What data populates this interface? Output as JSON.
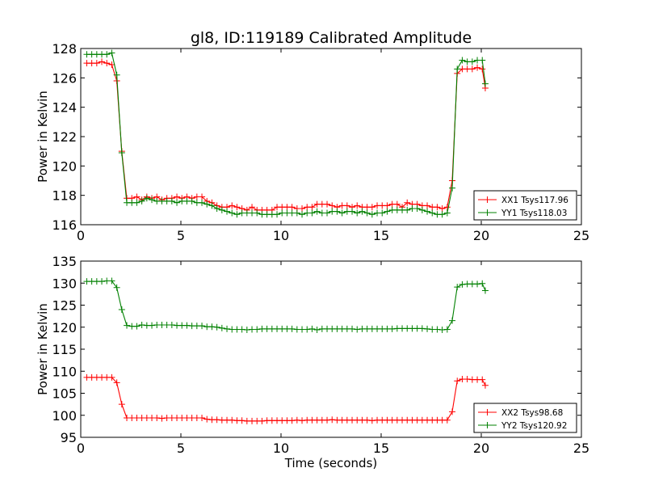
{
  "figure": {
    "title": "gl8, ID:119189 Calibrated Amplitude",
    "xlabel": "Time (seconds)"
  },
  "colors": {
    "xx": "#ff0000",
    "yy": "#008000"
  },
  "chart_data": [
    {
      "type": "line",
      "title": "gl8, ID:119189 Calibrated Amplitude",
      "xlabel": "",
      "ylabel": "Power in Kelvin",
      "xlim": [
        0,
        25
      ],
      "ylim": [
        116,
        128
      ],
      "xticks": [
        "0",
        "5",
        "10",
        "15",
        "20",
        "25"
      ],
      "yticks": [
        "116",
        "118",
        "120",
        "122",
        "124",
        "126",
        "128"
      ],
      "grid": false,
      "legend_position": "lower-right",
      "x": [
        0.3,
        0.55,
        0.8,
        1.05,
        1.3,
        1.55,
        1.8,
        2.05,
        2.3,
        2.55,
        2.8,
        3.05,
        3.3,
        3.55,
        3.8,
        4.05,
        4.3,
        4.55,
        4.8,
        5.05,
        5.3,
        5.55,
        5.8,
        6.05,
        6.3,
        6.55,
        6.8,
        7.05,
        7.3,
        7.55,
        7.8,
        8.05,
        8.3,
        8.55,
        8.8,
        9.05,
        9.3,
        9.55,
        9.8,
        10.05,
        10.3,
        10.55,
        10.8,
        11.05,
        11.3,
        11.55,
        11.8,
        12.05,
        12.3,
        12.55,
        12.8,
        13.05,
        13.3,
        13.55,
        13.8,
        14.05,
        14.3,
        14.55,
        14.8,
        15.05,
        15.3,
        15.55,
        15.8,
        16.05,
        16.3,
        16.55,
        16.8,
        17.05,
        17.3,
        17.55,
        17.8,
        18.05,
        18.3,
        18.55,
        18.8,
        19.05,
        19.3,
        19.55,
        19.8,
        20.05,
        20.2
      ],
      "series": [
        {
          "name": "XX1 Tsys117.96",
          "color": "#ff0000",
          "values": [
            127.0,
            127.0,
            127.0,
            127.1,
            127.0,
            126.9,
            125.8,
            121.0,
            117.8,
            117.8,
            117.9,
            117.7,
            117.9,
            117.8,
            117.9,
            117.7,
            117.8,
            117.8,
            117.9,
            117.8,
            117.9,
            117.8,
            117.9,
            117.9,
            117.6,
            117.5,
            117.3,
            117.2,
            117.2,
            117.3,
            117.2,
            117.1,
            117.0,
            117.2,
            117.0,
            117.0,
            117.0,
            117.0,
            117.2,
            117.2,
            117.2,
            117.2,
            117.1,
            117.1,
            117.2,
            117.2,
            117.4,
            117.4,
            117.4,
            117.3,
            117.2,
            117.3,
            117.3,
            117.2,
            117.3,
            117.2,
            117.2,
            117.2,
            117.3,
            117.3,
            117.3,
            117.4,
            117.4,
            117.2,
            117.5,
            117.4,
            117.4,
            117.3,
            117.3,
            117.2,
            117.2,
            117.1,
            117.2,
            119.0,
            126.3,
            126.6,
            126.6,
            126.6,
            126.7,
            126.6,
            125.3
          ]
        },
        {
          "name": "YY1 Tsys118.03",
          "color": "#008000",
          "values": [
            127.6,
            127.6,
            127.6,
            127.6,
            127.6,
            127.7,
            126.2,
            120.9,
            117.5,
            117.5,
            117.5,
            117.6,
            117.8,
            117.7,
            117.6,
            117.6,
            117.6,
            117.6,
            117.5,
            117.6,
            117.6,
            117.6,
            117.5,
            117.5,
            117.4,
            117.3,
            117.1,
            117.0,
            116.9,
            116.8,
            116.7,
            116.8,
            116.8,
            116.8,
            116.8,
            116.7,
            116.7,
            116.7,
            116.7,
            116.8,
            116.8,
            116.8,
            116.8,
            116.7,
            116.8,
            116.8,
            116.9,
            116.8,
            116.8,
            116.9,
            116.9,
            116.8,
            116.9,
            116.9,
            116.8,
            116.9,
            116.8,
            116.7,
            116.8,
            116.8,
            116.9,
            117.0,
            117.0,
            117.0,
            117.0,
            117.1,
            117.1,
            117.0,
            116.9,
            116.8,
            116.7,
            116.7,
            116.8,
            118.5,
            126.6,
            127.2,
            127.1,
            127.1,
            127.2,
            127.2,
            125.6
          ]
        }
      ]
    },
    {
      "type": "line",
      "title": "",
      "xlabel": "Time (seconds)",
      "ylabel": "Power in Kelvin",
      "xlim": [
        0,
        25
      ],
      "ylim": [
        95,
        135
      ],
      "xticks": [
        "0",
        "5",
        "10",
        "15",
        "20",
        "25"
      ],
      "yticks": [
        "95",
        "100",
        "105",
        "110",
        "115",
        "120",
        "125",
        "130",
        "135"
      ],
      "grid": false,
      "legend_position": "lower-right",
      "x": [
        0.3,
        0.55,
        0.8,
        1.05,
        1.3,
        1.55,
        1.8,
        2.05,
        2.3,
        2.55,
        2.8,
        3.05,
        3.3,
        3.55,
        3.8,
        4.05,
        4.3,
        4.55,
        4.8,
        5.05,
        5.3,
        5.55,
        5.8,
        6.05,
        6.3,
        6.55,
        6.8,
        7.05,
        7.3,
        7.55,
        7.8,
        8.05,
        8.3,
        8.55,
        8.8,
        9.05,
        9.3,
        9.55,
        9.8,
        10.05,
        10.3,
        10.55,
        10.8,
        11.05,
        11.3,
        11.55,
        11.8,
        12.05,
        12.3,
        12.55,
        12.8,
        13.05,
        13.3,
        13.55,
        13.8,
        14.05,
        14.3,
        14.55,
        14.8,
        15.05,
        15.3,
        15.55,
        15.8,
        16.05,
        16.3,
        16.55,
        16.8,
        17.05,
        17.3,
        17.55,
        17.8,
        18.05,
        18.3,
        18.55,
        18.8,
        19.05,
        19.3,
        19.55,
        19.8,
        20.05,
        20.2
      ],
      "series": [
        {
          "name": "XX2 Tsys98.68",
          "color": "#ff0000",
          "values": [
            108.6,
            108.6,
            108.6,
            108.6,
            108.6,
            108.6,
            107.4,
            102.5,
            99.4,
            99.4,
            99.4,
            99.4,
            99.4,
            99.4,
            99.4,
            99.3,
            99.4,
            99.4,
            99.4,
            99.4,
            99.4,
            99.4,
            99.4,
            99.4,
            99.1,
            99.0,
            99.0,
            98.9,
            98.9,
            98.9,
            98.8,
            98.8,
            98.7,
            98.7,
            98.7,
            98.7,
            98.8,
            98.8,
            98.8,
            98.8,
            98.8,
            98.8,
            98.9,
            98.8,
            98.9,
            98.9,
            98.9,
            98.9,
            98.9,
            99.0,
            98.9,
            98.9,
            98.9,
            98.9,
            98.9,
            98.9,
            98.9,
            98.8,
            98.9,
            98.9,
            98.9,
            98.9,
            98.9,
            98.9,
            98.9,
            98.9,
            98.9,
            98.9,
            98.9,
            98.9,
            98.9,
            98.9,
            98.9,
            100.8,
            107.8,
            108.2,
            108.2,
            108.1,
            108.1,
            108.1,
            106.8
          ]
        },
        {
          "name": "YY2 Tsys120.92",
          "color": "#008000",
          "values": [
            130.4,
            130.4,
            130.4,
            130.4,
            130.5,
            130.5,
            129.0,
            124.0,
            120.4,
            120.2,
            120.2,
            120.5,
            120.4,
            120.4,
            120.5,
            120.5,
            120.5,
            120.5,
            120.4,
            120.4,
            120.4,
            120.3,
            120.3,
            120.3,
            120.1,
            120.1,
            120.0,
            119.8,
            119.6,
            119.5,
            119.5,
            119.5,
            119.4,
            119.5,
            119.5,
            119.6,
            119.6,
            119.6,
            119.6,
            119.6,
            119.6,
            119.6,
            119.5,
            119.5,
            119.5,
            119.6,
            119.4,
            119.6,
            119.6,
            119.6,
            119.6,
            119.6,
            119.6,
            119.6,
            119.5,
            119.6,
            119.6,
            119.6,
            119.6,
            119.6,
            119.6,
            119.6,
            119.7,
            119.7,
            119.7,
            119.7,
            119.7,
            119.7,
            119.6,
            119.5,
            119.5,
            119.4,
            119.5,
            121.5,
            129.1,
            129.7,
            129.8,
            129.8,
            129.8,
            129.9,
            128.3
          ]
        }
      ]
    }
  ]
}
